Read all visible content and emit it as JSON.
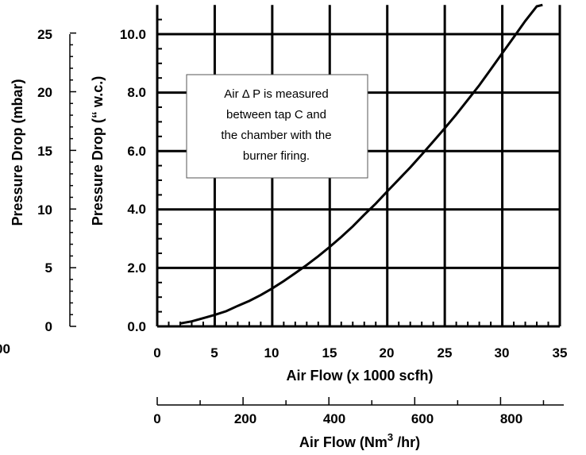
{
  "chart_data": {
    "type": "line",
    "x_axis_label": "Air Flow (x 1000 scfh)",
    "x_ticks": [
      "0",
      "5",
      "10",
      "15",
      "20",
      "25",
      "30",
      "35"
    ],
    "xlim": [
      0,
      35
    ],
    "y_axis_label": "Pressure Drop (“ w.c.)",
    "y_ticks": [
      "0.0",
      "2.0",
      "4.0",
      "6.0",
      "8.0",
      "10.0"
    ],
    "ylim": [
      0,
      11
    ],
    "secondary_y_label": "Pressure Drop (mbar)",
    "secondary_y_ticks": [
      "0",
      "5",
      "10",
      "15",
      "20",
      "25"
    ],
    "secondary_y_left_edge_label": "00",
    "secondary_x_label_main": "Air Flow (Nm",
    "secondary_x_label_sup": "3",
    "secondary_x_label_end": " /hr)",
    "secondary_x_ticks": [
      "0",
      "200",
      "400",
      "600",
      "800"
    ],
    "annotation": [
      "Air Δ P is measured",
      "between tap C and",
      "the chamber with the",
      "burner firing."
    ],
    "grid": true,
    "series": [
      {
        "x": [
          2,
          3,
          4,
          5,
          6,
          7,
          8,
          9,
          10,
          11,
          12,
          13,
          14,
          15,
          16,
          17,
          18,
          19,
          20,
          21,
          22,
          23,
          24,
          25,
          26,
          27,
          28,
          29,
          30,
          31,
          32,
          33,
          33.5
        ],
        "y": [
          0.1,
          0.17,
          0.28,
          0.39,
          0.52,
          0.7,
          0.87,
          1.07,
          1.3,
          1.55,
          1.82,
          2.1,
          2.4,
          2.72,
          3.06,
          3.42,
          3.82,
          4.2,
          4.62,
          5.03,
          5.44,
          5.88,
          6.33,
          6.78,
          7.25,
          7.75,
          8.25,
          8.8,
          9.35,
          9.9,
          10.45,
          10.95,
          11.0
        ]
      }
    ]
  }
}
